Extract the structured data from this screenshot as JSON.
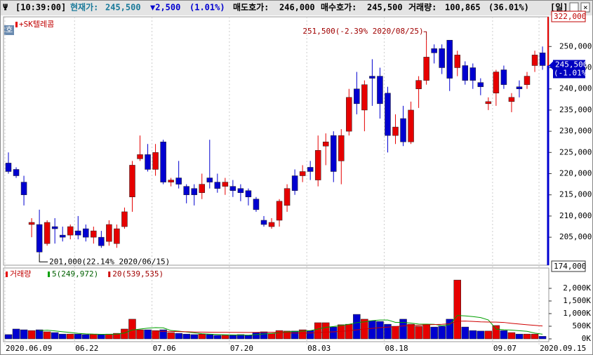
{
  "header": {
    "time": "[10:39:00]",
    "price_label": "현재가:",
    "price": "245,500",
    "change": "▼2,500",
    "change_pct": "(1.01%)",
    "ask_label": "매도호가:",
    "ask": "246,000",
    "bid_label": "매수호가:",
    "bid": "245,500",
    "volume_label": "거래량:",
    "volume": "100,865",
    "volume_pct": "(36.01%)",
    "period_button": "[일]",
    "side_button": "호"
  },
  "chart_data": {
    "type": "candlestick",
    "title": "+SK텔레콤",
    "categories": [
      "2020.06.09",
      null,
      null,
      null,
      null,
      null,
      null,
      null,
      null,
      "06.22",
      null,
      null,
      null,
      null,
      null,
      null,
      null,
      null,
      null,
      "07.06",
      null,
      null,
      null,
      null,
      null,
      null,
      null,
      null,
      null,
      "07.20",
      null,
      null,
      null,
      null,
      null,
      null,
      null,
      null,
      null,
      "08.03",
      null,
      null,
      null,
      null,
      null,
      null,
      null,
      null,
      null,
      "08.18",
      null,
      null,
      null,
      null,
      null,
      null,
      null,
      null,
      null,
      null,
      null,
      null,
      null,
      "09.07",
      null,
      null,
      null,
      null,
      null,
      "2020.09.15"
    ],
    "open": [
      222500,
      221000,
      218000,
      208000,
      208000,
      203500,
      207500,
      205500,
      205500,
      206500,
      207000,
      205000,
      205000,
      204000,
      203500,
      207500,
      214500,
      223500,
      224500,
      221000,
      227500,
      218000,
      219000,
      217000,
      216500,
      215500,
      219000,
      218000,
      217000,
      217000,
      216500,
      216000,
      214000,
      209000,
      207500,
      209000,
      212500,
      219500,
      219500,
      221500,
      218500,
      226500,
      229000,
      223000,
      230000,
      240000,
      235000,
      243000,
      243000,
      239000,
      229000,
      233000,
      227500,
      240000,
      242000,
      249500,
      249500,
      251500,
      245000,
      245500,
      245000,
      241500,
      236500,
      239000,
      244500,
      237000,
      240500,
      241000,
      245500,
      248500
    ],
    "high": [
      225000,
      221500,
      219500,
      209500,
      211500,
      209000,
      209500,
      207500,
      208000,
      210000,
      208000,
      207500,
      206500,
      209000,
      208000,
      212000,
      223000,
      229000,
      227000,
      227000,
      228000,
      219000,
      223000,
      217500,
      217500,
      220000,
      228000,
      220000,
      219000,
      218500,
      217500,
      216500,
      214500,
      210000,
      209500,
      214000,
      217500,
      221000,
      222000,
      223000,
      229000,
      229500,
      230000,
      230500,
      240000,
      244000,
      242000,
      247000,
      245000,
      240500,
      234000,
      236000,
      237000,
      243000,
      251500,
      250500,
      250500,
      251000,
      249000,
      246500,
      246000,
      242500,
      238000,
      244500,
      245500,
      239000,
      242000,
      244000,
      249000,
      250000
    ],
    "low": [
      220000,
      219000,
      212500,
      205000,
      201000,
      203000,
      203500,
      204000,
      204500,
      204500,
      204000,
      203500,
      202500,
      203000,
      202500,
      207000,
      211000,
      223000,
      220500,
      219500,
      217500,
      217000,
      216500,
      213000,
      212500,
      214000,
      216500,
      215500,
      215000,
      214500,
      213500,
      212500,
      211000,
      207500,
      207000,
      207500,
      211000,
      215000,
      218000,
      218500,
      217000,
      222000,
      218000,
      217500,
      229000,
      234000,
      230000,
      236000,
      233000,
      225000,
      227000,
      226500,
      227000,
      235500,
      241000,
      246000,
      243500,
      239500,
      243000,
      241000,
      240000,
      238500,
      235000,
      236000,
      240000,
      234500,
      238000,
      240000,
      244000,
      244500
    ],
    "close": [
      220500,
      219500,
      215000,
      208500,
      201500,
      208500,
      207000,
      205000,
      207500,
      205500,
      205000,
      206500,
      203000,
      208000,
      207000,
      211000,
      222000,
      224500,
      221000,
      225000,
      218000,
      218500,
      217500,
      215000,
      215000,
      217500,
      218000,
      216500,
      218000,
      216000,
      215500,
      214500,
      211500,
      208000,
      208500,
      213500,
      216500,
      216000,
      220500,
      220500,
      225500,
      227500,
      220500,
      229000,
      238000,
      236500,
      241000,
      242500,
      236500,
      229000,
      231000,
      227500,
      235000,
      242000,
      247500,
      248500,
      245000,
      242500,
      248000,
      242000,
      242000,
      240500,
      237000,
      244000,
      241000,
      238000,
      240000,
      243000,
      248000,
      245500
    ],
    "up_color": "#e60000",
    "down_color": "#0000d0",
    "ylim": [
      198400,
      257000
    ],
    "yticks": [
      {
        "value": 205000,
        "label": "205,000"
      },
      {
        "value": 210000,
        "label": "210,000"
      },
      {
        "value": 215000,
        "label": "215,000"
      },
      {
        "value": 220000,
        "label": "220,000"
      },
      {
        "value": 225000,
        "label": "225,000"
      },
      {
        "value": 230000,
        "label": "230,000"
      },
      {
        "value": 235000,
        "label": "235,000"
      },
      {
        "value": 240000,
        "label": "240,000"
      },
      {
        "value": 245000,
        "label": "245,000"
      },
      {
        "value": 250000,
        "label": "250,000"
      }
    ],
    "high_annotation": "251,500(-2.39% 2020/08/25)",
    "low_annotation": "201,000(22.14% 2020/06/15)",
    "upper_limit_label": "322,000",
    "lower_limit_label": "174,000",
    "current_price_label": "245,500",
    "current_change_label": "(-1.01%)",
    "volume": {
      "name": "거래량",
      "values": [
        170000,
        390000,
        360000,
        330000,
        360000,
        280000,
        250000,
        190000,
        190000,
        190000,
        170000,
        190000,
        170000,
        190000,
        220000,
        390000,
        780000,
        360000,
        360000,
        330000,
        360000,
        250000,
        220000,
        190000,
        170000,
        190000,
        170000,
        140000,
        140000,
        140000,
        170000,
        140000,
        250000,
        280000,
        220000,
        330000,
        310000,
        310000,
        360000,
        330000,
        640000,
        640000,
        470000,
        560000,
        580000,
        970000,
        780000,
        720000,
        690000,
        580000,
        500000,
        780000,
        580000,
        500000,
        560000,
        470000,
        500000,
        780000,
        2330000,
        470000,
        330000,
        310000,
        310000,
        530000,
        330000,
        250000,
        190000,
        190000,
        190000,
        100865
      ],
      "ylim": [
        0,
        2750000
      ],
      "yticks": [
        {
          "value": 0,
          "label": "0K"
        },
        {
          "value": 500000,
          "label": "500K"
        },
        {
          "value": 1000000,
          "label": "1,000K"
        },
        {
          "value": 1500000,
          "label": "1,500K"
        },
        {
          "value": 2000000,
          "label": "2,000K"
        }
      ],
      "ma": [
        {
          "period": 5,
          "label": "5(249,972)",
          "color": "#00a000"
        },
        {
          "period": 20,
          "label": "20(539,535)",
          "color": "#d00000"
        }
      ]
    }
  }
}
